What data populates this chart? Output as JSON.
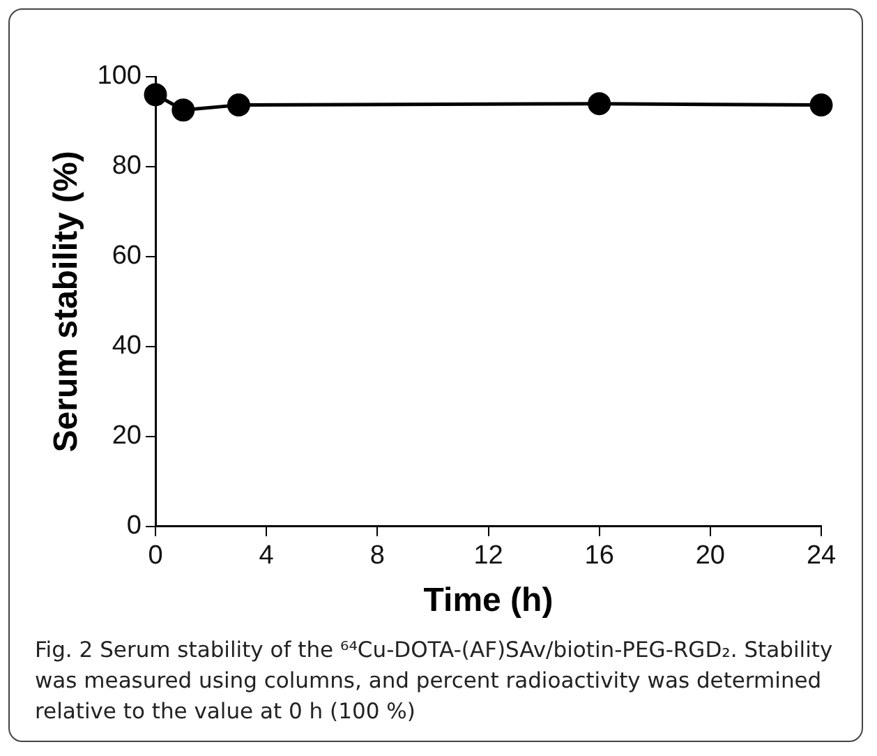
{
  "chart_data": {
    "type": "line",
    "xlabel": "Time (h)",
    "ylabel": "Serum stability (%)",
    "x": [
      0,
      1,
      3,
      16,
      24
    ],
    "series": [
      {
        "color": "#000000",
        "values": [
          96,
          92.6,
          93.7,
          94,
          93.7
        ]
      }
    ],
    "xlim": [
      0,
      24
    ],
    "xticks": [
      0,
      4,
      8,
      12,
      16,
      20,
      24
    ],
    "ylim": [
      0,
      100
    ],
    "yticks": [
      0,
      20,
      40,
      60,
      80,
      100
    ],
    "grid": false,
    "legend": false,
    "marker": "circle",
    "line_style": "solid",
    "annotations": [
      "Fig. 2 Serum stability of the ⁶⁴Cu-DOTA-(AF)SAv/biotin-PEG-RGD₂. Stability was measured using columns, and percent radioactivity was determined relative to the value at 0 h (100 %)"
    ]
  }
}
